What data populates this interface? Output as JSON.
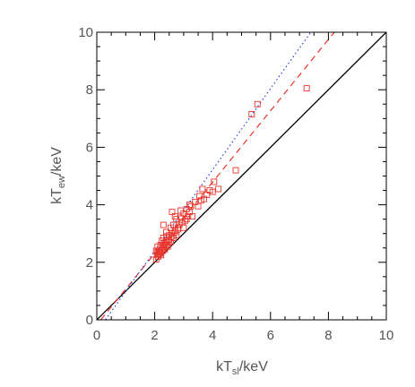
{
  "chart_data": {
    "type": "scatter",
    "xlim": [
      0,
      10
    ],
    "ylim": [
      0,
      10
    ],
    "xticks": [
      "0",
      "2",
      "4",
      "6",
      "8",
      "10"
    ],
    "yticks": [
      "0",
      "2",
      "4",
      "6",
      "8",
      "10"
    ],
    "xlabel": {
      "main": "kT",
      "sub": "sl",
      "unit": "/keV"
    },
    "ylabel": {
      "main": "kT",
      "sub": "ew",
      "unit": "/keV"
    },
    "grid": false,
    "lines": [
      {
        "style": "solid",
        "color": "#000000",
        "slope": 1.0,
        "intercept": 0.0,
        "xrange": [
          0,
          10
        ]
      },
      {
        "style": "dashed",
        "color": "#e8342c",
        "slope": 1.24,
        "intercept": -0.17,
        "xrange": [
          0.14,
          8.2
        ]
      },
      {
        "style": "dotted",
        "color": "#2a3ee0",
        "slope": 1.41,
        "intercept": -0.42,
        "xrange": [
          0.3,
          7.4
        ]
      }
    ],
    "points": {
      "marker": "square",
      "color": "#e8342c",
      "x": [
        2.05,
        2.08,
        2.1,
        2.12,
        2.15,
        2.18,
        2.2,
        2.22,
        2.25,
        2.05,
        2.1,
        2.15,
        2.2,
        2.28,
        2.3,
        2.32,
        2.35,
        2.38,
        2.4,
        2.42,
        2.45,
        2.48,
        2.5,
        2.2,
        2.25,
        2.3,
        2.35,
        2.4,
        2.45,
        2.5,
        2.55,
        2.6,
        2.65,
        2.7,
        2.75,
        2.8,
        2.55,
        2.6,
        2.65,
        2.7,
        2.75,
        2.8,
        2.85,
        2.9,
        2.95,
        3.0,
        3.05,
        3.1,
        3.15,
        3.2,
        3.25,
        2.9,
        3.0,
        3.1,
        3.2,
        3.3,
        3.4,
        3.5,
        3.55,
        3.6,
        3.65,
        3.7,
        3.8,
        3.9,
        4.0,
        4.05,
        4.2,
        4.8,
        5.35,
        5.55,
        7.25,
        2.3,
        2.4,
        2.6,
        2.7
      ],
      "y": [
        2.1,
        2.25,
        2.35,
        2.2,
        2.4,
        2.3,
        2.5,
        2.25,
        2.45,
        2.4,
        2.55,
        2.3,
        2.6,
        2.4,
        2.5,
        2.65,
        2.45,
        2.7,
        2.55,
        2.75,
        2.6,
        2.8,
        2.7,
        2.35,
        2.75,
        2.85,
        2.6,
        2.9,
        2.55,
        2.95,
        2.7,
        3.0,
        2.85,
        3.1,
        2.95,
        3.2,
        3.2,
        2.9,
        3.3,
        3.05,
        3.5,
        3.15,
        3.3,
        3.55,
        3.4,
        3.7,
        3.45,
        3.85,
        3.6,
        3.75,
        3.95,
        3.8,
        3.2,
        3.5,
        4.0,
        3.6,
        4.1,
        3.95,
        4.3,
        4.15,
        4.55,
        4.2,
        4.35,
        4.5,
        4.45,
        4.8,
        4.55,
        5.2,
        7.15,
        7.5,
        8.05,
        3.3,
        3.05,
        3.75,
        3.6
      ]
    }
  }
}
